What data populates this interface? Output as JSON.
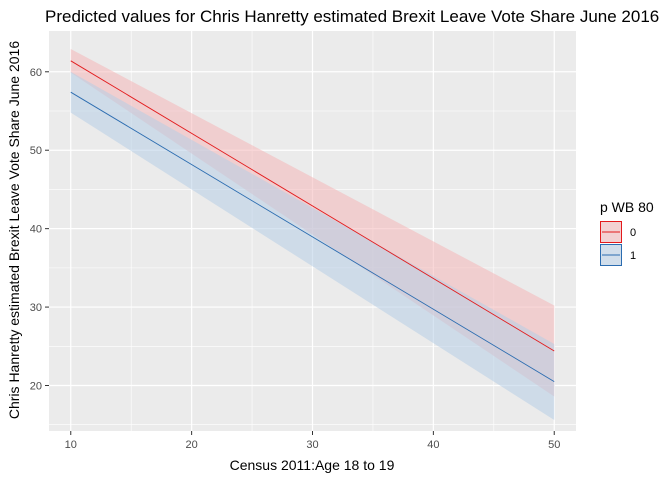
{
  "chart_data": {
    "type": "line",
    "title": "Predicted values for Chris Hanretty estimated Brexit Leave Vote Share June 2016",
    "xlabel": "Census 2011:Age 18 to 19",
    "ylabel": "Chris Hanretty estimated Brexit Leave Vote Share June 2016",
    "xlim": [
      8.2,
      51.8
    ],
    "ylim": [
      14.2,
      65.2
    ],
    "x_ticks": [
      10,
      20,
      30,
      40,
      50
    ],
    "y_ticks": [
      20,
      30,
      40,
      50,
      60
    ],
    "grid": true,
    "legend": {
      "title": "p WB 80",
      "placement": "right",
      "entries": [
        "0",
        "1"
      ]
    },
    "series": [
      {
        "name": "0",
        "color": "#e31a1c",
        "fill": "#f4b6b8",
        "x": [
          10,
          50
        ],
        "y": [
          61.4,
          24.4
        ],
        "lower": [
          59.9,
          18.6
        ],
        "upper": [
          62.9,
          30.2
        ]
      },
      {
        "name": "1",
        "color": "#2b6cb0",
        "fill": "#b7cde6",
        "x": [
          10,
          50
        ],
        "y": [
          57.4,
          20.5
        ],
        "lower": [
          54.8,
          15.6
        ],
        "upper": [
          60.0,
          25.3
        ]
      }
    ]
  }
}
